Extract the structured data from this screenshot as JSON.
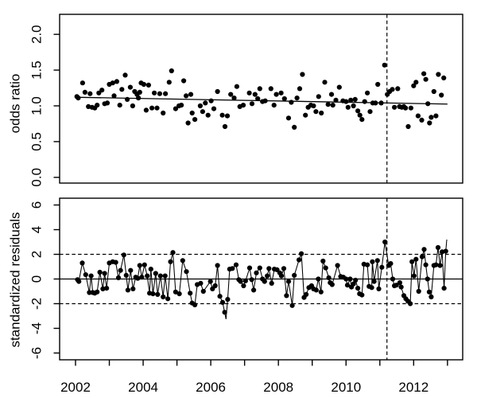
{
  "figure": {
    "background": "#ffffff",
    "foreground": "#000000"
  },
  "x_axis": {
    "tick_years": [
      2002,
      2003,
      2004,
      2005,
      2006,
      2007,
      2008,
      2009,
      2010,
      2011,
      2012,
      2013
    ],
    "labeled_years": [
      2002,
      2004,
      2006,
      2008,
      2010,
      2012
    ],
    "labels": [
      "2002",
      "2004",
      "2006",
      "2008",
      "2010",
      "2012"
    ]
  },
  "chart_data": [
    {
      "type": "scatter",
      "title": "",
      "xlabel": "",
      "ylabel": "odds ratio",
      "xlim": [
        2001.53,
        2013.45
      ],
      "ylim": [
        -0.08,
        2.28
      ],
      "yticks": [
        "0.0",
        "0.5",
        "1.0",
        "1.5",
        "2.0"
      ],
      "ytick_values": [
        0,
        0.5,
        1,
        1.5,
        2
      ],
      "grid": false,
      "trend_line": {
        "x": [
          2002.0,
          2013.0
        ],
        "y": [
          1.12,
          1.025
        ]
      },
      "vline": {
        "x": 2011.21,
        "style": "dashed"
      },
      "points": [
        [
          2002.04,
          1.13
        ],
        [
          2002.08,
          1.11
        ],
        [
          2002.21,
          1.32
        ],
        [
          2002.28,
          1.19
        ],
        [
          2002.38,
          0.99
        ],
        [
          2002.43,
          1.17
        ],
        [
          2002.49,
          0.98
        ],
        [
          2002.57,
          0.97
        ],
        [
          2002.64,
          1.01
        ],
        [
          2002.69,
          1.18
        ],
        [
          2002.78,
          1.22
        ],
        [
          2002.86,
          1.03
        ],
        [
          2002.94,
          1.04
        ],
        [
          2003.0,
          1.3
        ],
        [
          2003.1,
          1.32
        ],
        [
          2003.14,
          1.14
        ],
        [
          2003.22,
          1.34
        ],
        [
          2003.31,
          1.01
        ],
        [
          2003.37,
          1.23
        ],
        [
          2003.47,
          1.43
        ],
        [
          2003.53,
          1.09
        ],
        [
          2003.62,
          1.26
        ],
        [
          2003.69,
          1.0
        ],
        [
          2003.75,
          1.2
        ],
        [
          2003.82,
          1.16
        ],
        [
          2003.86,
          1.11
        ],
        [
          2003.9,
          1.19
        ],
        [
          2003.94,
          1.32
        ],
        [
          2004.02,
          1.3
        ],
        [
          2004.09,
          0.94
        ],
        [
          2004.16,
          1.29
        ],
        [
          2004.26,
          0.97
        ],
        [
          2004.33,
          1.18
        ],
        [
          2004.41,
          0.97
        ],
        [
          2004.49,
          1.17
        ],
        [
          2004.59,
          0.9
        ],
        [
          2004.66,
          1.17
        ],
        [
          2004.77,
          1.33
        ],
        [
          2004.84,
          1.49
        ],
        [
          2004.96,
          0.96
        ],
        [
          2005.06,
          1.0
        ],
        [
          2005.13,
          1.01
        ],
        [
          2005.2,
          1.35
        ],
        [
          2005.27,
          1.14
        ],
        [
          2005.33,
          0.76
        ],
        [
          2005.41,
          1.16
        ],
        [
          2005.45,
          0.9
        ],
        [
          2005.53,
          0.81
        ],
        [
          2005.69,
          1.0
        ],
        [
          2005.76,
          0.92
        ],
        [
          2005.84,
          1.04
        ],
        [
          2005.92,
          0.87
        ],
        [
          2006.01,
          1.07
        ],
        [
          2006.09,
          0.96
        ],
        [
          2006.2,
          1.2
        ],
        [
          2006.34,
          0.87
        ],
        [
          2006.42,
          0.71
        ],
        [
          2006.49,
          0.86
        ],
        [
          2006.59,
          1.16
        ],
        [
          2006.69,
          1.11
        ],
        [
          2006.77,
          1.27
        ],
        [
          2006.86,
          0.99
        ],
        [
          2006.96,
          1.01
        ],
        [
          2007.14,
          1.18
        ],
        [
          2007.22,
          1.03
        ],
        [
          2007.31,
          1.16
        ],
        [
          2007.39,
          1.1
        ],
        [
          2007.45,
          1.24
        ],
        [
          2007.53,
          1.06
        ],
        [
          2007.61,
          1.07
        ],
        [
          2007.78,
          1.24
        ],
        [
          2007.87,
          1.01
        ],
        [
          2007.94,
          1.16
        ],
        [
          2008.08,
          1.18
        ],
        [
          2008.18,
          1.1
        ],
        [
          2008.3,
          0.83
        ],
        [
          2008.38,
          1.05
        ],
        [
          2008.47,
          0.7
        ],
        [
          2008.55,
          1.11
        ],
        [
          2008.63,
          1.24
        ],
        [
          2008.71,
          1.44
        ],
        [
          2008.8,
          0.87
        ],
        [
          2008.88,
          0.98
        ],
        [
          2008.96,
          1.01
        ],
        [
          2009.04,
          1.0
        ],
        [
          2009.11,
          0.92
        ],
        [
          2009.19,
          1.13
        ],
        [
          2009.27,
          0.9
        ],
        [
          2009.37,
          1.33
        ],
        [
          2009.47,
          1.02
        ],
        [
          2009.57,
          1.16
        ],
        [
          2009.61,
          1.01
        ],
        [
          2009.7,
          1.08
        ],
        [
          2009.8,
          1.26
        ],
        [
          2009.91,
          1.07
        ],
        [
          2010.0,
          1.06
        ],
        [
          2010.06,
          0.98
        ],
        [
          2010.14,
          1.08
        ],
        [
          2010.22,
          1.0
        ],
        [
          2010.27,
          1.09
        ],
        [
          2010.35,
          0.93
        ],
        [
          2010.41,
          0.87
        ],
        [
          2010.47,
          0.81
        ],
        [
          2010.55,
          1.06
        ],
        [
          2010.63,
          1.18
        ],
        [
          2010.71,
          0.92
        ],
        [
          2010.79,
          1.04
        ],
        [
          2010.87,
          1.04
        ],
        [
          2010.94,
          1.3
        ],
        [
          2011.04,
          1.04
        ],
        [
          2011.14,
          1.57
        ],
        [
          2011.22,
          1.16
        ],
        [
          2011.29,
          1.2
        ],
        [
          2011.37,
          1.23
        ],
        [
          2011.43,
          0.98
        ],
        [
          2011.53,
          1.24
        ],
        [
          2011.58,
          0.99
        ],
        [
          2011.65,
          0.98
        ],
        [
          2011.71,
          0.99
        ],
        [
          2011.76,
          0.97
        ],
        [
          2011.84,
          0.71
        ],
        [
          2011.92,
          0.97
        ],
        [
          2012.0,
          1.28
        ],
        [
          2012.07,
          1.33
        ],
        [
          2012.13,
          0.86
        ],
        [
          2012.24,
          0.8
        ],
        [
          2012.3,
          1.45
        ],
        [
          2012.36,
          1.37
        ],
        [
          2012.42,
          1.03
        ],
        [
          2012.47,
          0.76
        ],
        [
          2012.52,
          0.84
        ],
        [
          2012.6,
          1.2
        ],
        [
          2012.66,
          0.86
        ],
        [
          2012.73,
          1.44
        ],
        [
          2012.82,
          1.15
        ],
        [
          2012.89,
          1.39
        ]
      ]
    },
    {
      "type": "scatter+line",
      "title": "",
      "xlabel": "",
      "ylabel": "standardized residuals",
      "xlim": [
        2001.53,
        2013.45
      ],
      "ylim": [
        -6.55,
        6.55
      ],
      "yticks": [
        "-6",
        "-4",
        "-2",
        "0",
        "2",
        "4",
        "6"
      ],
      "ytick_values": [
        -6,
        -4,
        -2,
        0,
        2,
        4,
        6
      ],
      "grid": false,
      "hlines": [
        {
          "y": 0,
          "style": "solid"
        },
        {
          "y": 2,
          "style": "dashed"
        },
        {
          "y": -2,
          "style": "dashed"
        }
      ],
      "vline": {
        "x": 2011.21,
        "style": "dashed"
      },
      "points": [
        [
          2002.06,
          -0.05
        ],
        [
          2002.1,
          -0.2
        ],
        [
          2002.2,
          1.3
        ],
        [
          2002.3,
          0.35
        ],
        [
          2002.41,
          -1.1
        ],
        [
          2002.46,
          0.25
        ],
        [
          2002.51,
          -1.1
        ],
        [
          2002.57,
          -1.15
        ],
        [
          2002.64,
          -1.05
        ],
        [
          2002.72,
          0.55
        ],
        [
          2002.81,
          -0.8
        ],
        [
          2002.86,
          0.45
        ],
        [
          2002.92,
          -0.75
        ],
        [
          2003.0,
          1.3
        ],
        [
          2003.1,
          1.4
        ],
        [
          2003.19,
          1.35
        ],
        [
          2003.27,
          0.1
        ],
        [
          2003.33,
          0.7
        ],
        [
          2003.43,
          1.95
        ],
        [
          2003.5,
          0.3
        ],
        [
          2003.55,
          -0.9
        ],
        [
          2003.63,
          0.7
        ],
        [
          2003.7,
          -0.8
        ],
        [
          2003.78,
          0.15
        ],
        [
          2003.84,
          0.05
        ],
        [
          2003.9,
          1.1
        ],
        [
          2003.96,
          0.15
        ],
        [
          2004.04,
          1.15
        ],
        [
          2004.12,
          0.25
        ],
        [
          2004.19,
          -1.15
        ],
        [
          2004.23,
          0.8
        ],
        [
          2004.29,
          -1.2
        ],
        [
          2004.37,
          0.45
        ],
        [
          2004.43,
          -1.25
        ],
        [
          2004.51,
          0.25
        ],
        [
          2004.59,
          -1.45
        ],
        [
          2004.65,
          0.25
        ],
        [
          2004.73,
          -1.6
        ],
        [
          2004.81,
          1.4
        ],
        [
          2004.88,
          2.15
        ],
        [
          2004.96,
          -1.05
        ],
        [
          2005.07,
          -1.2
        ],
        [
          2005.17,
          1.5
        ],
        [
          2005.28,
          0.6
        ],
        [
          2005.39,
          -1.15
        ],
        [
          2005.45,
          -1.95
        ],
        [
          2005.53,
          -2.1
        ],
        [
          2005.6,
          -0.45
        ],
        [
          2005.7,
          -0.35
        ],
        [
          2005.78,
          -1.0
        ],
        [
          2005.99,
          -0.2
        ],
        [
          2006.05,
          -0.8
        ],
        [
          2006.13,
          -0.55
        ],
        [
          2006.2,
          1.1
        ],
        [
          2006.27,
          -1.4
        ],
        [
          2006.35,
          -1.9
        ],
        [
          2006.41,
          -2.7
        ],
        [
          2006.5,
          -1.65
        ],
        [
          2006.56,
          0.8
        ],
        [
          2006.64,
          0.85
        ],
        [
          2006.75,
          1.15
        ],
        [
          2006.83,
          -0.05
        ],
        [
          2006.88,
          -0.2
        ],
        [
          2006.97,
          -0.55
        ],
        [
          2007.03,
          -0.15
        ],
        [
          2007.15,
          0.9
        ],
        [
          2007.21,
          -0.05
        ],
        [
          2007.27,
          -0.9
        ],
        [
          2007.35,
          0.5
        ],
        [
          2007.45,
          0.9
        ],
        [
          2007.53,
          0.0
        ],
        [
          2007.59,
          -0.2
        ],
        [
          2007.67,
          0.25
        ],
        [
          2007.72,
          0.85
        ],
        [
          2007.8,
          -0.35
        ],
        [
          2007.88,
          0.8
        ],
        [
          2007.96,
          0.75
        ],
        [
          2008.04,
          0.5
        ],
        [
          2008.09,
          0.25
        ],
        [
          2008.16,
          0.85
        ],
        [
          2008.24,
          -1.35
        ],
        [
          2008.3,
          -0.2
        ],
        [
          2008.41,
          -2.15
        ],
        [
          2008.47,
          0.3
        ],
        [
          2008.61,
          1.55
        ],
        [
          2008.68,
          2.05
        ],
        [
          2008.76,
          -1.5
        ],
        [
          2008.82,
          -1.25
        ],
        [
          2008.9,
          -0.7
        ],
        [
          2008.98,
          -0.55
        ],
        [
          2009.04,
          -0.8
        ],
        [
          2009.12,
          -0.9
        ],
        [
          2009.18,
          0.0
        ],
        [
          2009.26,
          -1.05
        ],
        [
          2009.32,
          1.45
        ],
        [
          2009.4,
          0.9
        ],
        [
          2009.49,
          0.1
        ],
        [
          2009.53,
          -0.3
        ],
        [
          2009.59,
          -0.45
        ],
        [
          2009.75,
          1.1
        ],
        [
          2009.84,
          0.2
        ],
        [
          2009.92,
          0.15
        ],
        [
          2010.0,
          0.0
        ],
        [
          2010.04,
          -0.5
        ],
        [
          2010.12,
          0.0
        ],
        [
          2010.16,
          -0.65
        ],
        [
          2010.22,
          -0.4
        ],
        [
          2010.28,
          -0.1
        ],
        [
          2010.35,
          -0.75
        ],
        [
          2010.4,
          -1.2
        ],
        [
          2010.47,
          -1.3
        ],
        [
          2010.53,
          1.2
        ],
        [
          2010.63,
          1.15
        ],
        [
          2010.68,
          -0.6
        ],
        [
          2010.76,
          -0.7
        ],
        [
          2010.78,
          1.4
        ],
        [
          2010.83,
          -0.2
        ],
        [
          2010.93,
          1.5
        ],
        [
          2010.97,
          -0.8
        ],
        [
          2011.06,
          0.95
        ],
        [
          2011.15,
          3.0
        ],
        [
          2011.26,
          1.1
        ],
        [
          2011.32,
          1.25
        ],
        [
          2011.38,
          0.0
        ],
        [
          2011.43,
          -0.55
        ],
        [
          2011.49,
          -0.5
        ],
        [
          2011.59,
          -0.3
        ],
        [
          2011.63,
          -0.65
        ],
        [
          2011.71,
          -1.35
        ],
        [
          2011.77,
          -1.6
        ],
        [
          2011.83,
          -1.8
        ],
        [
          2011.9,
          -2.0
        ],
        [
          2011.95,
          1.4
        ],
        [
          2012.01,
          0.25
        ],
        [
          2012.07,
          1.6
        ],
        [
          2012.15,
          -1.0
        ],
        [
          2012.25,
          1.8
        ],
        [
          2012.31,
          2.4
        ],
        [
          2012.36,
          1.15
        ],
        [
          2012.41,
          0.0
        ],
        [
          2012.46,
          -1.05
        ],
        [
          2012.52,
          -1.45
        ],
        [
          2012.6,
          1.1
        ],
        [
          2012.66,
          1.15
        ],
        [
          2012.72,
          2.55
        ],
        [
          2012.78,
          1.1
        ],
        [
          2012.84,
          2.2
        ],
        [
          2012.9,
          -0.75
        ],
        [
          2012.95,
          2.25
        ]
      ],
      "line_inserts": [
        [
          2006.45,
          -3.25
        ],
        [
          2012.98,
          3.2
        ]
      ]
    }
  ]
}
